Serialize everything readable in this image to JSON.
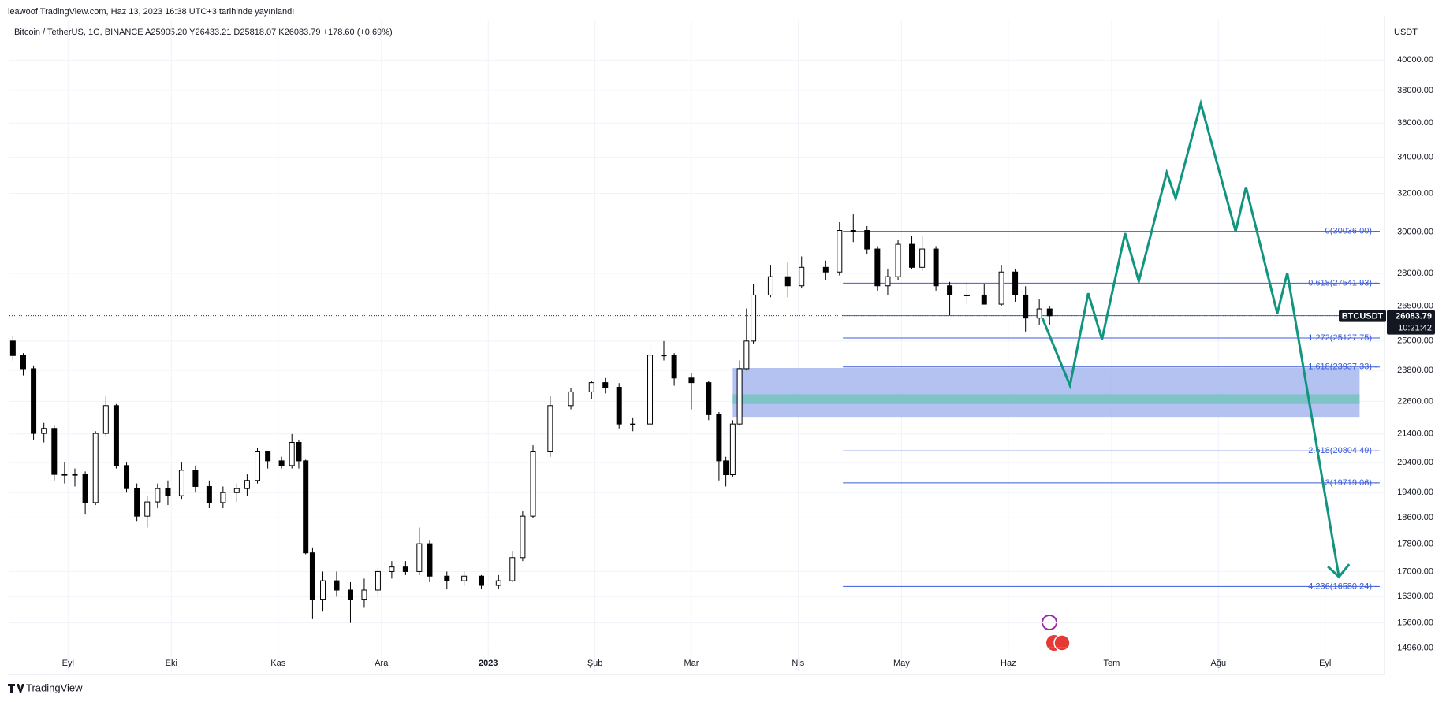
{
  "header": {
    "published": "leawoof TradingView.com, Haz 13, 2023 16:38 UTC+3 tarihinde yayınlandı",
    "footer": "TradingView"
  },
  "chart_data": {
    "type": "candlestick",
    "title": "Bitcoin / TetherUS, 1G, BINANCE  A25905.20  Y26433.21  D25818.07  K26083.79  +178.60 (+0.69%)",
    "y_unit": "USDT",
    "log_scale": true,
    "grid": true,
    "xlim": [
      -17,
      382
    ],
    "ylim": [
      14350,
      42740
    ],
    "xticks": [
      {
        "value": 0,
        "label": "Eyl"
      },
      {
        "value": 30,
        "label": "Eki"
      },
      {
        "value": 61,
        "label": "Kas"
      },
      {
        "value": 91,
        "label": "Ara"
      },
      {
        "value": 122,
        "label": "2023"
      },
      {
        "value": 153,
        "label": "Şub"
      },
      {
        "value": 181,
        "label": "Mar"
      },
      {
        "value": 212,
        "label": "Nis"
      },
      {
        "value": 242,
        "label": "May"
      },
      {
        "value": 273,
        "label": "Haz"
      },
      {
        "value": 303,
        "label": "Tem"
      },
      {
        "value": 334,
        "label": "Ağu"
      },
      {
        "value": 365,
        "label": "Eyl"
      }
    ],
    "yticks": [
      {
        "value": 40000,
        "label": "40000.00"
      },
      {
        "value": 38000,
        "label": "38000.00"
      },
      {
        "value": 36000,
        "label": "36000.00"
      },
      {
        "value": 34000,
        "label": "34000.00"
      },
      {
        "value": 32000,
        "label": "32000.00"
      },
      {
        "value": 30000,
        "label": "30000.00"
      },
      {
        "value": 28000,
        "label": "28000.00"
      },
      {
        "value": 26500,
        "label": "26500.00"
      },
      {
        "value": 25000,
        "label": "25000.00"
      },
      {
        "value": 23800,
        "label": "23800.00"
      },
      {
        "value": 22600,
        "label": "22600.00"
      },
      {
        "value": 21400,
        "label": "21400.00"
      },
      {
        "value": 20400,
        "label": "20400.00"
      },
      {
        "value": 19400,
        "label": "19400.00"
      },
      {
        "value": 18600,
        "label": "18600.00"
      },
      {
        "value": 17800,
        "label": "17800.00"
      },
      {
        "value": 17000,
        "label": "17000.00"
      },
      {
        "value": 16300,
        "label": "16300.00"
      },
      {
        "value": 15600,
        "label": "15600.00"
      },
      {
        "value": 14960,
        "label": "14960.00"
      }
    ],
    "series": [
      {
        "name": "BTCUSDT",
        "up_color": "#ffffff",
        "down_color": "#000000",
        "x": [
          -16,
          -13,
          -10,
          -7,
          -4,
          -1,
          2,
          5,
          8,
          11,
          14,
          17,
          20,
          23,
          26,
          29,
          33,
          37,
          41,
          45,
          49,
          52,
          55,
          58,
          62,
          65,
          67,
          69,
          71,
          74,
          78,
          82,
          86,
          90,
          94,
          98,
          102,
          105,
          110,
          115,
          120,
          125,
          129,
          132,
          135,
          140,
          146,
          152,
          156,
          160,
          164,
          169,
          173,
          176,
          181,
          186,
          189,
          191,
          193,
          195,
          197,
          199,
          204,
          209,
          213,
          220,
          224,
          228,
          232,
          235,
          238,
          241,
          245,
          248,
          252,
          256,
          261,
          266,
          271,
          275,
          278,
          282,
          285
        ],
        "open": [
          25000,
          24400,
          23870,
          21420,
          21600,
          20000,
          20000,
          19990,
          19080,
          21420,
          22440,
          20300,
          19530,
          18650,
          19100,
          19530,
          19300,
          20140,
          19600,
          19080,
          19400,
          19530,
          19800,
          20770,
          20460,
          20300,
          21100,
          20460,
          17540,
          16230,
          16740,
          16480,
          16230,
          16480,
          17000,
          17130,
          17000,
          17810,
          16870,
          16740,
          16870,
          16610,
          16740,
          17400,
          18650,
          20770,
          22440,
          22960,
          23320,
          23140,
          21760,
          21760,
          24420,
          24420,
          23500,
          23320,
          22100,
          20460,
          19990,
          21760,
          23870,
          25000,
          27000,
          27840,
          27420,
          28280,
          28060,
          30080,
          30080,
          29160,
          27420,
          27840,
          29390,
          28280,
          29160,
          27420,
          27000,
          27000,
          26590,
          28060,
          27000,
          25980,
          26380
        ],
        "high": [
          25200,
          24500,
          24000,
          21800,
          21700,
          20400,
          20200,
          20100,
          21500,
          22790,
          22500,
          20400,
          19700,
          19300,
          19700,
          19800,
          20400,
          20300,
          19800,
          19600,
          19700,
          20000,
          20900,
          20800,
          20600,
          21400,
          21200,
          20500,
          17700,
          17000,
          17000,
          16700,
          16800,
          17100,
          17300,
          17300,
          18300,
          17900,
          17000,
          17000,
          16900,
          16900,
          17600,
          18800,
          21000,
          22800,
          23100,
          23400,
          23500,
          23300,
          22000,
          24800,
          25000,
          24500,
          23700,
          23400,
          22200,
          20600,
          21900,
          24200,
          26400,
          27500,
          28400,
          28500,
          28800,
          28600,
          30500,
          30900,
          30300,
          29300,
          28200,
          29600,
          29800,
          29800,
          29300,
          27600,
          27600,
          27500,
          28400,
          28200,
          27400,
          26800,
          26500
        ],
        "low": [
          24200,
          23600,
          21200,
          21100,
          19800,
          19700,
          19600,
          18700,
          19000,
          21300,
          20200,
          19400,
          18500,
          18300,
          18900,
          19000,
          19200,
          19400,
          18900,
          18900,
          19100,
          19300,
          19700,
          20200,
          20200,
          20200,
          20200,
          17500,
          15700,
          15900,
          16300,
          15600,
          16000,
          16300,
          16800,
          16900,
          16900,
          16700,
          16500,
          16600,
          16500,
          16500,
          16700,
          17300,
          18600,
          20600,
          22300,
          22700,
          22900,
          21600,
          21500,
          21700,
          24200,
          23200,
          22300,
          21900,
          19800,
          19600,
          19900,
          21700,
          23800,
          24900,
          26900,
          26900,
          27300,
          27700,
          27900,
          29500,
          28900,
          27200,
          27000,
          27700,
          28200,
          28100,
          27200,
          26100,
          26600,
          26600,
          26500,
          26700,
          25400,
          25700,
          25700
        ],
        "close": [
          24400,
          23870,
          21420,
          21600,
          20000,
          20000,
          19990,
          19080,
          21420,
          22440,
          20300,
          19530,
          18650,
          19100,
          19530,
          19300,
          20140,
          19600,
          19080,
          19400,
          19530,
          19800,
          20770,
          20460,
          20300,
          21100,
          20460,
          17540,
          16230,
          16740,
          16480,
          16230,
          16480,
          17000,
          17130,
          17000,
          17810,
          16870,
          16740,
          16870,
          16610,
          16740,
          17400,
          18650,
          20770,
          22440,
          22960,
          23320,
          23140,
          21760,
          21760,
          24420,
          24420,
          23500,
          23320,
          22100,
          20460,
          19990,
          21760,
          23870,
          25000,
          27000,
          27840,
          27420,
          28280,
          28060,
          30080,
          30080,
          29160,
          27420,
          27840,
          29390,
          28280,
          29160,
          27420,
          27000,
          27000,
          26590,
          28060,
          27000,
          25980,
          26380,
          26080
        ]
      }
    ],
    "last_price": {
      "value": 26083.79,
      "symbol": "BTCUSDT",
      "label": "26083.79",
      "countdown": "10:21:42"
    },
    "fib": {
      "color": "#3b5bdb",
      "from": 225,
      "levels": [
        {
          "label": "0(30036.00)",
          "value": 30036.0
        },
        {
          "label": "0.618(27541.93)",
          "value": 27541.93
        },
        {
          "label": "1.272(25127.75)",
          "value": 25127.75
        },
        {
          "label": "1.618(23937.33)",
          "value": 23937.33
        },
        {
          "label": "2.618(20804.49)",
          "value": 20804.49
        },
        {
          "label": "3(19719.06)",
          "value": 19719.06
        },
        {
          "label": "4.236(16580.24)",
          "value": 16580.24
        }
      ]
    },
    "zone": {
      "x": [
        193,
        375
      ],
      "range": [
        22020,
        23900
      ],
      "core": [
        22500,
        22870
      ],
      "color": "#9aaeec",
      "core_color": "#7ec3c8"
    },
    "projection": {
      "color": "#12957f",
      "x": [
        282.9,
        290.9,
        296.2,
        300.2,
        306.9,
        310.9,
        319.0,
        321.6,
        328.9,
        339.0,
        342.0,
        351.1,
        354.0,
        369.0
      ],
      "y": [
        25980,
        23210,
        27080,
        25070,
        29940,
        27630,
        33140,
        31740,
        37200,
        30030,
        32340,
        26180,
        28020,
        16850
      ]
    }
  }
}
